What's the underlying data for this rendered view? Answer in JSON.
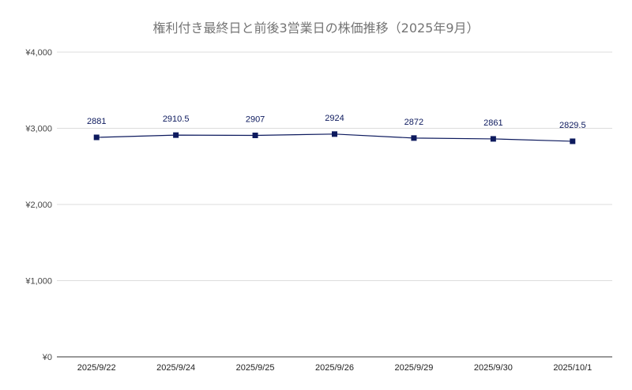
{
  "chart_data": {
    "type": "line",
    "title": "権利付き最終日と前後3営業日の株価推移（2025年9月）",
    "xlabel": "",
    "ylabel": "",
    "categories": [
      "2025/9/22",
      "2025/9/24",
      "2025/9/25",
      "2025/9/26",
      "2025/9/29",
      "2025/9/30",
      "2025/10/1"
    ],
    "series": [
      {
        "values": [
          2881,
          2910.5,
          2907,
          2924,
          2872,
          2861,
          2829.5
        ],
        "data_labels": [
          "2881",
          "2910.5",
          "2907",
          "2924",
          "2872",
          "2861",
          "2829.5"
        ],
        "color": "#0d1a5e"
      }
    ],
    "ylim": [
      0,
      4000
    ],
    "y_ticks": [
      0,
      1000,
      2000,
      3000,
      4000
    ],
    "y_tick_labels": [
      "¥0",
      "¥1,000",
      "¥2,000",
      "¥3,000",
      "¥4,000"
    ],
    "grid": true,
    "legend": "none",
    "marker": "square"
  }
}
